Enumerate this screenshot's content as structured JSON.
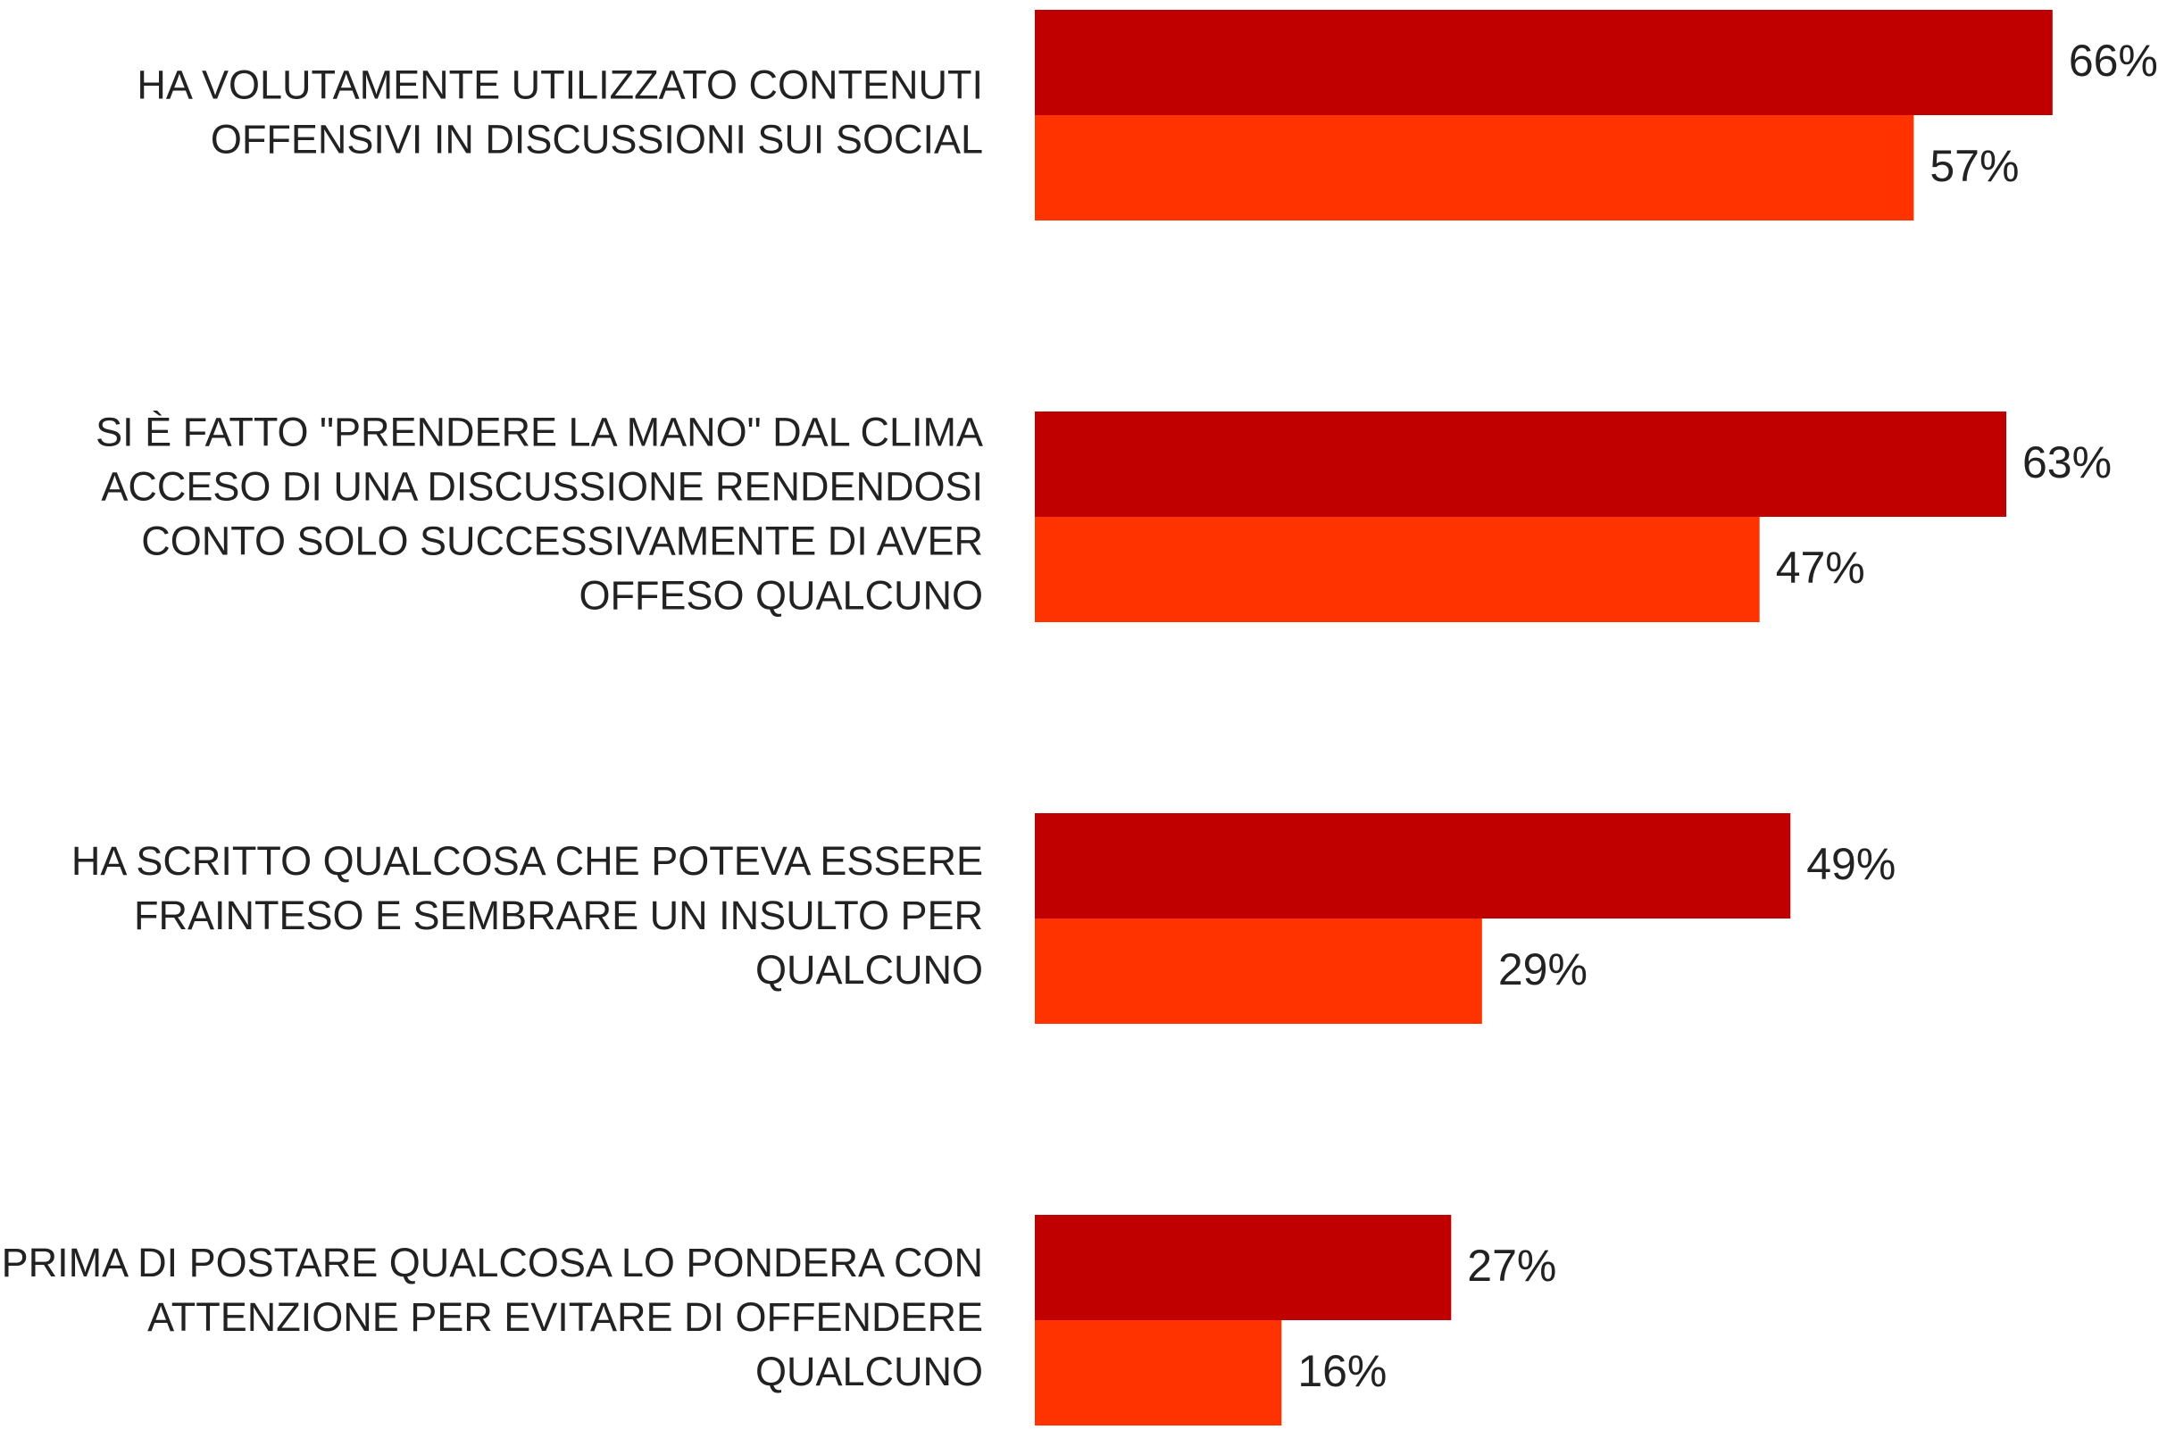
{
  "chart_data": {
    "type": "hbar",
    "categories": [
      [
        "HA VOLUTAMENTE UTILIZZATO CONTENUTI",
        "OFFENSIVI IN DISCUSSIONI SUI SOCIAL"
      ],
      [
        "SI È FATTO \"PRENDERE LA MANO\" DAL CLIMA",
        "ACCESO DI UNA DISCUSSIONE RENDENDOSI",
        "CONTO SOLO SUCCESSIVAMENTE DI AVER",
        "OFFESO QUALCUNO"
      ],
      [
        "HA SCRITTO QUALCOSA CHE POTEVA ESSERE",
        "FRAINTESO E SEMBRARE UN INSULTO PER",
        "QUALCUNO"
      ],
      [
        "PRIMA DI POSTARE QUALCOSA LO PONDERA CON",
        "ATTENZIONE PER EVITARE DI OFFENDERE",
        "QUALCUNO"
      ]
    ],
    "series": [
      {
        "color": "#c00000",
        "values": [
          66,
          63,
          49,
          27
        ],
        "value_labels": [
          "66%",
          "63%",
          "49%",
          "27%"
        ]
      },
      {
        "color": "#ff3300",
        "values": [
          57,
          47,
          29,
          16
        ],
        "value_labels": [
          "57%",
          "47%",
          "29%",
          "16%"
        ]
      }
    ]
  }
}
